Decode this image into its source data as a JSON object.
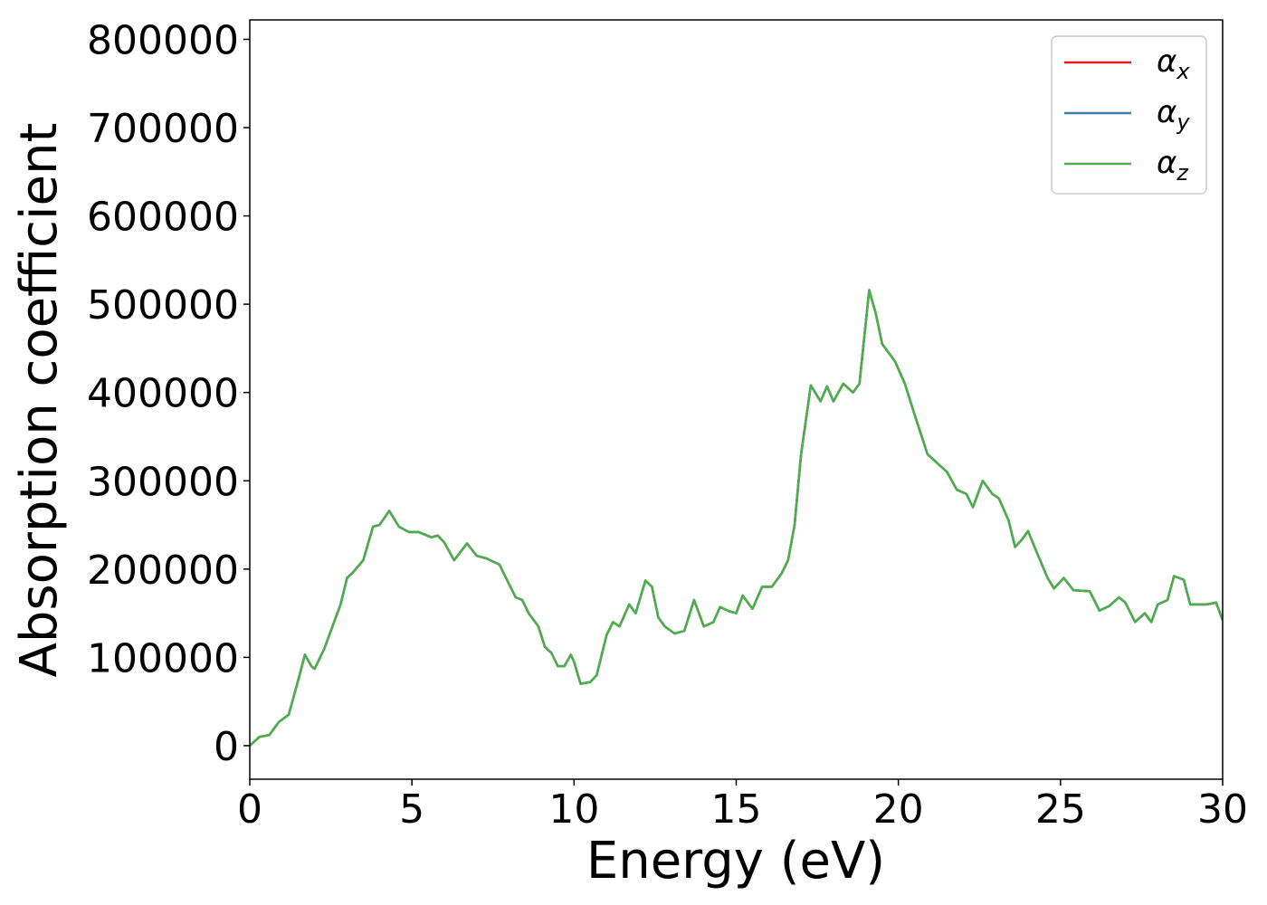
{
  "chart_data": {
    "type": "line",
    "xlabel": "Energy (eV)",
    "ylabel": "Absorption coefficient",
    "x": [
      0,
      0.3,
      0.6,
      0.9,
      1.2,
      1.5,
      1.7,
      1.9,
      2.0,
      2.3,
      2.6,
      2.8,
      3.0,
      3.2,
      3.5,
      3.8,
      4.0,
      4.3,
      4.6,
      4.9,
      5.2,
      5.6,
      5.8,
      6.0,
      6.3,
      6.7,
      7.0,
      7.3,
      7.7,
      7.9,
      8.2,
      8.4,
      8.6,
      8.9,
      9.1,
      9.3,
      9.5,
      9.7,
      9.9,
      10.0,
      10.2,
      10.5,
      10.7,
      11.0,
      11.2,
      11.4,
      11.7,
      11.9,
      12.2,
      12.4,
      12.6,
      12.8,
      13.1,
      13.4,
      13.7,
      14.0,
      14.3,
      14.5,
      14.8,
      15.0,
      15.2,
      15.5,
      15.8,
      16.1,
      16.4,
      16.6,
      16.8,
      17.0,
      17.3,
      17.6,
      17.8,
      18.0,
      18.3,
      18.6,
      18.8,
      19.1,
      19.3,
      19.5,
      19.9,
      20.2,
      20.5,
      20.9,
      21.2,
      21.5,
      21.8,
      22.1,
      22.3,
      22.6,
      22.9,
      23.1,
      23.4,
      23.6,
      23.8,
      24.0,
      24.2,
      24.6,
      24.8,
      25.1,
      25.4,
      25.9,
      26.2,
      26.5,
      26.8,
      27.0,
      27.3,
      27.6,
      27.8,
      28.0,
      28.3,
      28.5,
      28.8,
      29.0,
      29.5,
      29.8,
      30.0
    ],
    "series": [
      {
        "name": "αx",
        "color": "#e41a1c",
        "values": [
          0,
          10000,
          12000,
          27000,
          35000,
          75000,
          103000,
          90000,
          87000,
          110000,
          140000,
          160000,
          190000,
          197000,
          210000,
          248000,
          250000,
          266000,
          248000,
          242000,
          242000,
          236000,
          238000,
          230000,
          210000,
          229000,
          215000,
          212000,
          205000,
          190000,
          168000,
          165000,
          150000,
          135000,
          112000,
          105000,
          90000,
          90000,
          103000,
          95000,
          70000,
          72000,
          80000,
          125000,
          140000,
          135000,
          160000,
          150000,
          187000,
          180000,
          145000,
          135000,
          127000,
          130000,
          165000,
          135000,
          140000,
          157000,
          152000,
          150000,
          170000,
          155000,
          180000,
          180000,
          195000,
          210000,
          250000,
          330000,
          408000,
          390000,
          407000,
          390000,
          410000,
          400000,
          410000,
          516000,
          490000,
          455000,
          435000,
          410000,
          375000,
          330000,
          320000,
          310000,
          290000,
          285000,
          270000,
          300000,
          285000,
          280000,
          255000,
          225000,
          233000,
          243000,
          225000,
          190000,
          178000,
          190000,
          176000,
          175000,
          153000,
          158000,
          168000,
          162000,
          140000,
          150000,
          140000,
          160000,
          165000,
          192000,
          188000,
          160000,
          160000,
          162000,
          142000
        ]
      },
      {
        "name": "αy",
        "color": "#377eb8",
        "values": [
          0,
          10000,
          12000,
          27000,
          35000,
          75000,
          103000,
          90000,
          87000,
          110000,
          140000,
          160000,
          190000,
          197000,
          210000,
          248000,
          250000,
          266000,
          248000,
          242000,
          242000,
          236000,
          238000,
          230000,
          210000,
          229000,
          215000,
          212000,
          205000,
          190000,
          168000,
          165000,
          150000,
          135000,
          112000,
          105000,
          90000,
          90000,
          103000,
          95000,
          70000,
          72000,
          80000,
          125000,
          140000,
          135000,
          160000,
          150000,
          187000,
          180000,
          145000,
          135000,
          127000,
          130000,
          165000,
          135000,
          140000,
          157000,
          152000,
          150000,
          170000,
          155000,
          180000,
          180000,
          195000,
          210000,
          250000,
          330000,
          408000,
          390000,
          407000,
          390000,
          410000,
          400000,
          410000,
          516000,
          490000,
          455000,
          435000,
          410000,
          375000,
          330000,
          320000,
          310000,
          290000,
          285000,
          270000,
          300000,
          285000,
          280000,
          255000,
          225000,
          233000,
          243000,
          225000,
          190000,
          178000,
          190000,
          176000,
          175000,
          153000,
          158000,
          168000,
          162000,
          140000,
          150000,
          140000,
          160000,
          165000,
          192000,
          188000,
          160000,
          160000,
          162000,
          142000
        ]
      },
      {
        "name": "αz",
        "color": "#4daf4a",
        "values": [
          0,
          10000,
          12000,
          27000,
          35000,
          75000,
          103000,
          90000,
          87000,
          110000,
          140000,
          160000,
          190000,
          197000,
          210000,
          248000,
          250000,
          266000,
          248000,
          242000,
          242000,
          236000,
          238000,
          230000,
          210000,
          229000,
          215000,
          212000,
          205000,
          190000,
          168000,
          165000,
          150000,
          135000,
          112000,
          105000,
          90000,
          90000,
          103000,
          95000,
          70000,
          72000,
          80000,
          125000,
          140000,
          135000,
          160000,
          150000,
          187000,
          180000,
          145000,
          135000,
          127000,
          130000,
          165000,
          135000,
          140000,
          157000,
          152000,
          150000,
          170000,
          155000,
          180000,
          180000,
          195000,
          210000,
          250000,
          330000,
          408000,
          390000,
          407000,
          390000,
          410000,
          400000,
          410000,
          516000,
          490000,
          455000,
          435000,
          410000,
          375000,
          330000,
          320000,
          310000,
          290000,
          285000,
          270000,
          300000,
          285000,
          280000,
          255000,
          225000,
          233000,
          243000,
          225000,
          190000,
          178000,
          190000,
          176000,
          175000,
          153000,
          158000,
          168000,
          162000,
          140000,
          150000,
          140000,
          160000,
          165000,
          192000,
          188000,
          160000,
          160000,
          162000,
          142000
        ]
      }
    ],
    "xlim": [
      0,
      30
    ],
    "xticks": [
      0,
      5,
      10,
      15,
      20,
      25,
      30
    ],
    "ylim": [
      -38000,
      822000
    ],
    "yticks": [
      0,
      100000,
      200000,
      300000,
      400000,
      500000,
      600000,
      700000,
      800000
    ],
    "grid": false,
    "legend": "upper right"
  }
}
